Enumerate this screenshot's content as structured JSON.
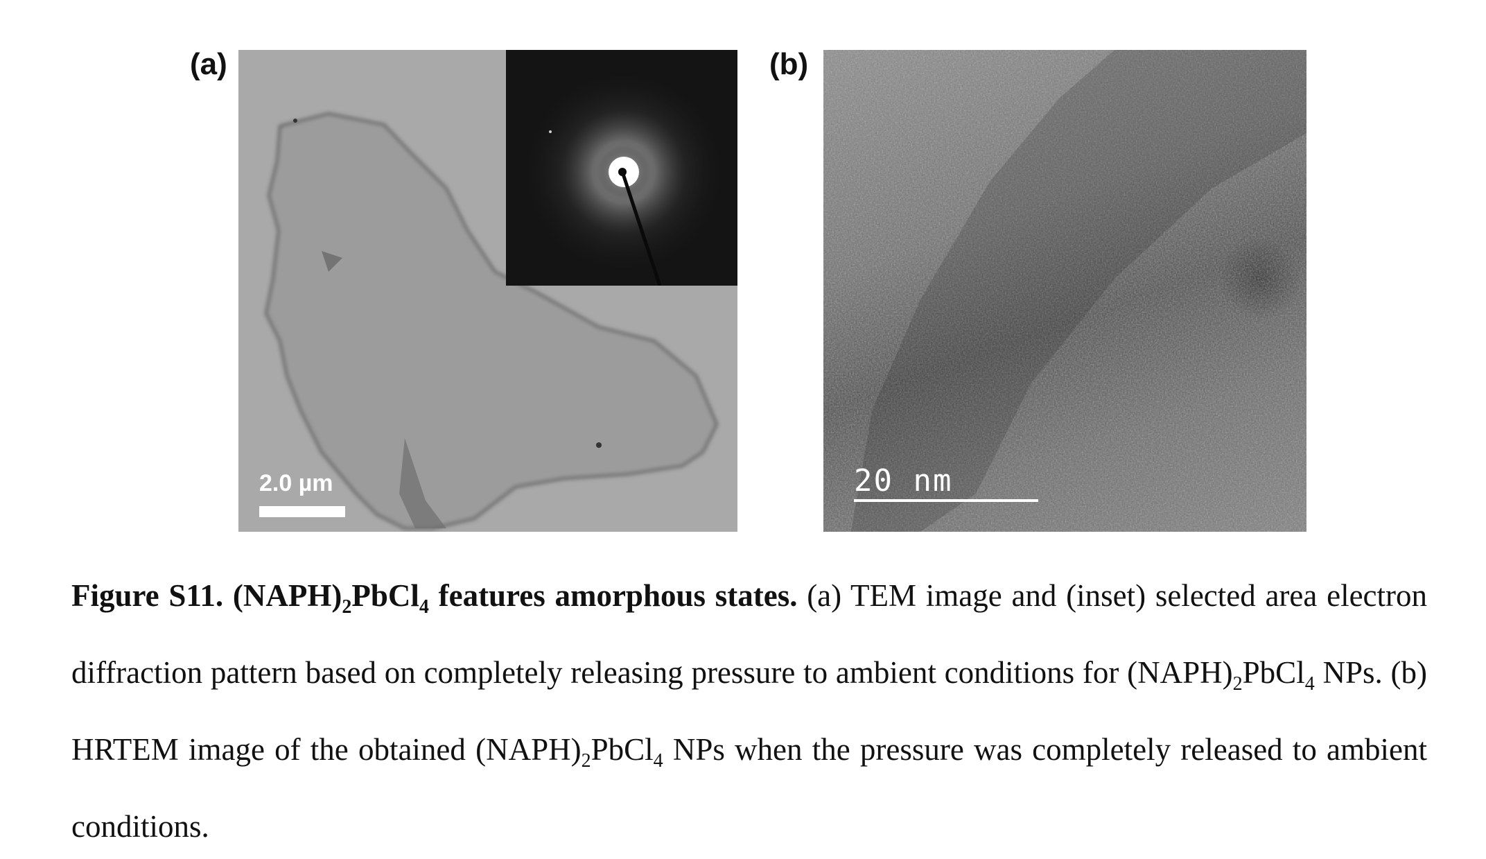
{
  "panels": {
    "a": {
      "label": "(a)",
      "scale_bar_text": "2.0 µm"
    },
    "b": {
      "label": "(b)",
      "scale_bar_text": "20 nm"
    }
  },
  "caption": {
    "figure_label": "Figure S11.",
    "title_prefix": "(NAPH)",
    "title_sub": "2",
    "title_mid": "PbCl",
    "title_sub2": "4",
    "title_suffix": " features amorphous states.",
    "body_1": " (a) TEM image and (inset) selected area electron diffraction pattern based on completely releasing pressure to ambient conditions for (NAPH)",
    "body_sub_1": "2",
    "body_2": "PbCl",
    "body_sub_2": "4",
    "body_3": " NPs. (b) HRTEM image of the obtained (NAPH)",
    "body_sub_3": "2",
    "body_4": "PbCl",
    "body_sub_4": "4",
    "body_5": " NPs when the pressure was completely released to ambient conditions."
  }
}
